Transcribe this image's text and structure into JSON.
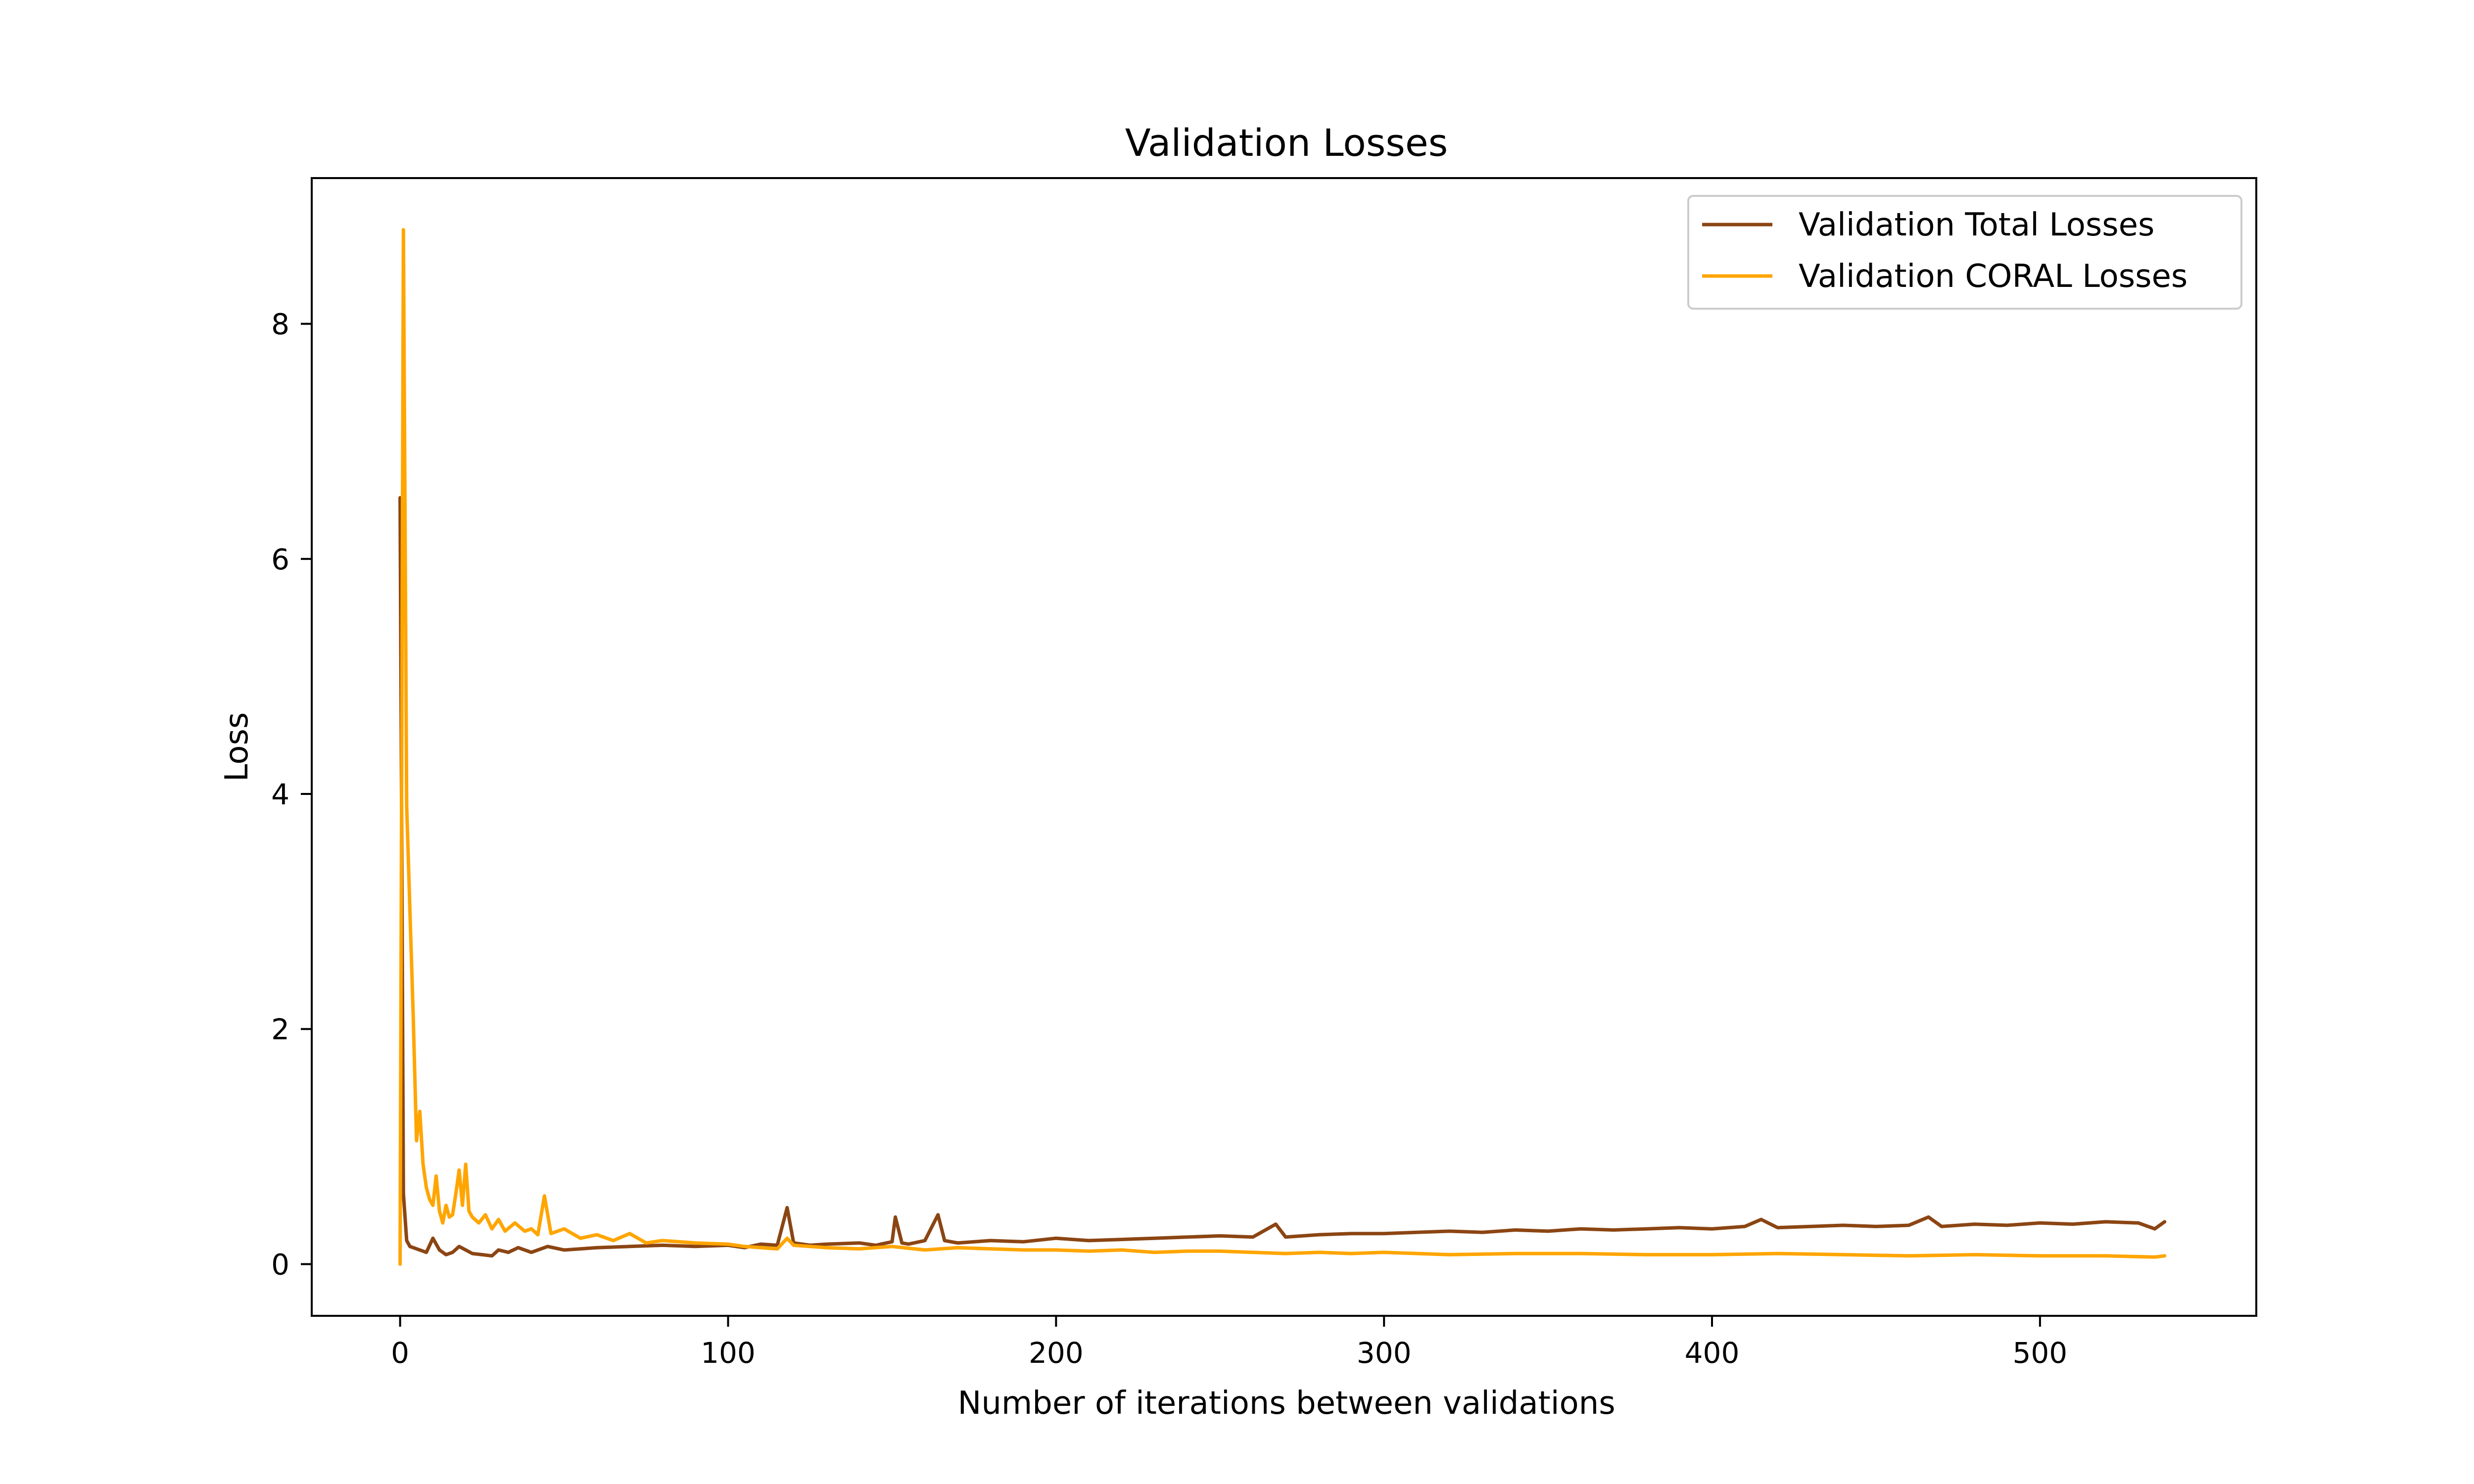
{
  "chart_data": {
    "type": "line",
    "title": "Validation Losses",
    "xlabel": "Number of iterations between validations",
    "ylabel": "Loss",
    "xlim": [
      -26.95,
      565.95
    ],
    "ylim": [
      -0.44,
      9.24
    ],
    "x_ticks": [
      0,
      100,
      200,
      300,
      400,
      500
    ],
    "y_ticks": [
      0,
      2,
      4,
      6,
      8
    ],
    "grid": false,
    "legend_position": "top-right",
    "series": [
      {
        "name": "Validation Total Losses",
        "color": "#8B4513",
        "x": [
          0,
          1,
          2,
          3,
          4,
          5,
          6,
          8,
          10,
          12,
          14,
          16,
          18,
          20,
          22,
          25,
          28,
          30,
          33,
          36,
          40,
          45,
          50,
          55,
          60,
          70,
          80,
          90,
          100,
          105,
          110,
          115,
          118,
          120,
          125,
          130,
          140,
          145,
          150,
          151,
          153,
          155,
          160,
          164,
          166,
          170,
          180,
          190,
          200,
          210,
          220,
          230,
          240,
          250,
          260,
          267,
          270,
          280,
          290,
          300,
          310,
          320,
          330,
          340,
          350,
          360,
          370,
          380,
          390,
          400,
          410,
          415,
          420,
          430,
          440,
          450,
          460,
          466,
          470,
          480,
          490,
          500,
          510,
          520,
          530,
          535,
          538
        ],
        "values": [
          6.52,
          0.6,
          0.2,
          0.15,
          0.14,
          0.13,
          0.12,
          0.1,
          0.22,
          0.12,
          0.08,
          0.1,
          0.15,
          0.12,
          0.09,
          0.08,
          0.07,
          0.12,
          0.1,
          0.14,
          0.1,
          0.15,
          0.12,
          0.13,
          0.14,
          0.15,
          0.16,
          0.15,
          0.16,
          0.14,
          0.17,
          0.16,
          0.48,
          0.18,
          0.16,
          0.17,
          0.18,
          0.16,
          0.19,
          0.4,
          0.18,
          0.17,
          0.2,
          0.42,
          0.2,
          0.18,
          0.2,
          0.19,
          0.22,
          0.2,
          0.21,
          0.22,
          0.23,
          0.24,
          0.23,
          0.34,
          0.23,
          0.25,
          0.26,
          0.26,
          0.27,
          0.28,
          0.27,
          0.29,
          0.28,
          0.3,
          0.29,
          0.3,
          0.31,
          0.3,
          0.32,
          0.38,
          0.31,
          0.32,
          0.33,
          0.32,
          0.33,
          0.4,
          0.32,
          0.34,
          0.33,
          0.35,
          0.34,
          0.36,
          0.35,
          0.3,
          0.36
        ]
      },
      {
        "name": "Validation CORAL Losses",
        "color": "#FFA500",
        "x": [
          0,
          1,
          2,
          3,
          4,
          5,
          6,
          7,
          8,
          9,
          10,
          11,
          12,
          13,
          14,
          15,
          16,
          17,
          18,
          19,
          20,
          21,
          22,
          24,
          26,
          28,
          30,
          32,
          35,
          38,
          40,
          42,
          44,
          46,
          50,
          55,
          60,
          65,
          70,
          75,
          80,
          90,
          100,
          105,
          110,
          115,
          118,
          120,
          130,
          140,
          150,
          160,
          170,
          180,
          190,
          200,
          210,
          220,
          230,
          240,
          250,
          260,
          270,
          280,
          290,
          300,
          320,
          340,
          360,
          380,
          400,
          420,
          440,
          460,
          480,
          500,
          520,
          535,
          538
        ],
        "values": [
          0.0,
          8.8,
          3.9,
          3.0,
          2.1,
          1.05,
          1.3,
          0.85,
          0.65,
          0.55,
          0.5,
          0.75,
          0.45,
          0.35,
          0.5,
          0.4,
          0.42,
          0.6,
          0.8,
          0.5,
          0.85,
          0.45,
          0.4,
          0.35,
          0.42,
          0.3,
          0.38,
          0.28,
          0.35,
          0.28,
          0.3,
          0.25,
          0.58,
          0.26,
          0.3,
          0.22,
          0.25,
          0.2,
          0.26,
          0.18,
          0.2,
          0.18,
          0.17,
          0.15,
          0.14,
          0.13,
          0.22,
          0.16,
          0.14,
          0.13,
          0.15,
          0.12,
          0.14,
          0.13,
          0.12,
          0.12,
          0.11,
          0.12,
          0.1,
          0.11,
          0.11,
          0.1,
          0.09,
          0.1,
          0.09,
          0.1,
          0.08,
          0.09,
          0.09,
          0.08,
          0.08,
          0.09,
          0.08,
          0.07,
          0.08,
          0.07,
          0.07,
          0.06,
          0.07
        ]
      }
    ]
  }
}
